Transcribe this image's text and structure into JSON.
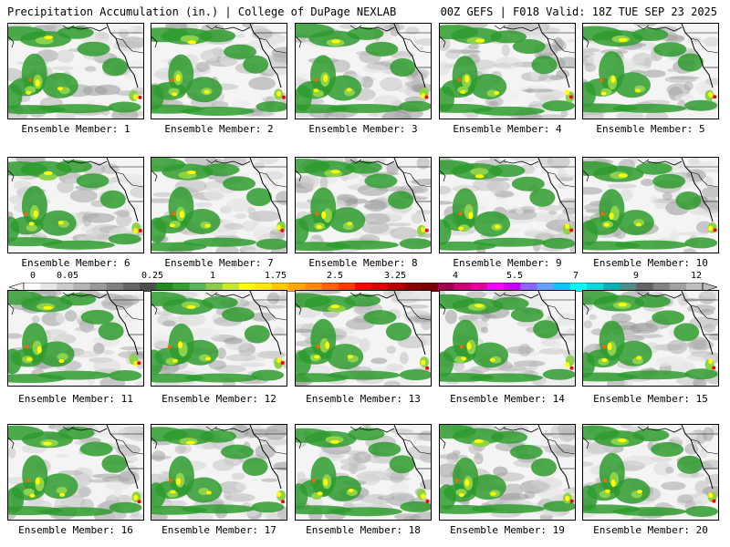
{
  "header": {
    "title": "Precipitation Accumulation (in.) | College of DuPage NEXLAB",
    "run_info": "00Z GEFS | F018 Valid: 18Z TUE SEP 23 2025"
  },
  "panels": [
    {
      "label": "Ensemble Member: 1"
    },
    {
      "label": "Ensemble Member: 2"
    },
    {
      "label": "Ensemble Member: 3"
    },
    {
      "label": "Ensemble Member: 4"
    },
    {
      "label": "Ensemble Member: 5"
    },
    {
      "label": "Ensemble Member: 6"
    },
    {
      "label": "Ensemble Member: 7"
    },
    {
      "label": "Ensemble Member: 8"
    },
    {
      "label": "Ensemble Member: 9"
    },
    {
      "label": "Ensemble Member: 10"
    },
    {
      "label": "Ensemble Member: 11"
    },
    {
      "label": "Ensemble Member: 12"
    },
    {
      "label": "Ensemble Member: 13"
    },
    {
      "label": "Ensemble Member: 14"
    },
    {
      "label": "Ensemble Member: 15"
    },
    {
      "label": "Ensemble Member: 16"
    },
    {
      "label": "Ensemble Member: 17"
    },
    {
      "label": "Ensemble Member: 18"
    },
    {
      "label": "Ensemble Member: 19"
    },
    {
      "label": "Ensemble Member: 20"
    }
  ],
  "colorbar": {
    "tick_labels": [
      "0",
      "0.05",
      "0.25",
      "1",
      "1.75",
      "2.5",
      "3.25",
      "4",
      "5.5",
      "7",
      "9",
      "12"
    ],
    "colors": [
      "#ffffff",
      "#e6e6e6",
      "#cccccc",
      "#b3b3b3",
      "#999999",
      "#808080",
      "#666666",
      "#4d4d4d",
      "#1e8c1e",
      "#32a032",
      "#5ab45a",
      "#8cc84b",
      "#c8e632",
      "#ffff00",
      "#ffe600",
      "#ffc800",
      "#ffa500",
      "#ff8c00",
      "#ff6400",
      "#ff3c00",
      "#ff0000",
      "#dc0000",
      "#b40000",
      "#8c0000",
      "#780000",
      "#a00050",
      "#c80078",
      "#e600a0",
      "#ff00ff",
      "#c800ff",
      "#8c64ff",
      "#64a0ff",
      "#00c8ff",
      "#00ffff",
      "#00dcdc",
      "#00b4b4",
      "#508c8c",
      "#646464",
      "#828282",
      "#a0a0a0",
      "#bebebe"
    ]
  }
}
